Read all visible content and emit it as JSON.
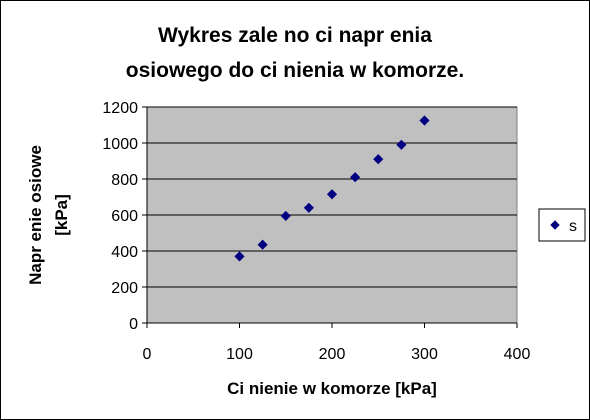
{
  "chart_data": {
    "type": "scatter",
    "title_lines": [
      "Wykres zale no ci napr enia",
      "osiowego do ci nienia w komorze."
    ],
    "xlabel": "Ci nienie w komorze [kPa]",
    "ylabel_lines": [
      "Napr enie osiowe",
      "[kPa]"
    ],
    "xlim": [
      0,
      400
    ],
    "ylim": [
      0,
      1200
    ],
    "xticks": [
      0,
      100,
      200,
      300,
      400
    ],
    "yticks": [
      0,
      200,
      400,
      600,
      800,
      1000,
      1200
    ],
    "grid": "horizontal",
    "plot_background": "#c0c0c0",
    "legend_position": "right",
    "series": [
      {
        "name": "s",
        "color": "#000080",
        "marker": "diamond",
        "x": [
          100,
          125,
          150,
          175,
          200,
          225,
          250,
          275,
          300
        ],
        "y": [
          370,
          435,
          595,
          640,
          715,
          810,
          910,
          990,
          1125
        ]
      }
    ]
  }
}
